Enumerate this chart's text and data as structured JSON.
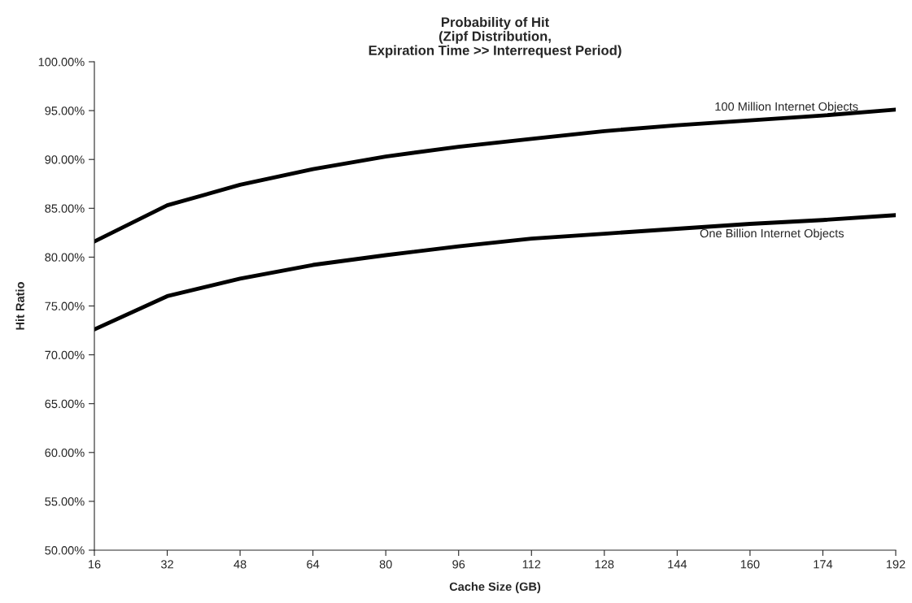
{
  "chart_data": {
    "type": "line",
    "title": "Probability of Hit\n(Zipf Distribution,\nExpiration Time >> Interrequest Period)",
    "xlabel": "Cache Size (GB)",
    "ylabel": "Hit Ratio",
    "categories": [
      "16",
      "32",
      "48",
      "64",
      "80",
      "96",
      "112",
      "128",
      "144",
      "160",
      "174",
      "192"
    ],
    "series": [
      {
        "name": "100 Million Internet Objects",
        "color": "#000000",
        "values": [
          81.6,
          85.3,
          87.4,
          89.0,
          90.3,
          91.3,
          92.1,
          92.9,
          93.5,
          94.0,
          94.5,
          95.1
        ]
      },
      {
        "name": "One Billion Internet Objects",
        "color": "#000000",
        "values": [
          72.6,
          76.0,
          77.8,
          79.2,
          80.2,
          81.1,
          81.9,
          82.4,
          82.9,
          83.4,
          83.8,
          84.3
        ]
      }
    ],
    "ylim": [
      50,
      100
    ],
    "yticks": [
      {
        "value": 50,
        "label": "50.00%"
      },
      {
        "value": 55,
        "label": "55.00%"
      },
      {
        "value": 60,
        "label": "60.00%"
      },
      {
        "value": 65,
        "label": "65.00%"
      },
      {
        "value": 70,
        "label": "70.00%"
      },
      {
        "value": 75,
        "label": "75.00%"
      },
      {
        "value": 80,
        "label": "80.00%"
      },
      {
        "value": 85,
        "label": "85.00%"
      },
      {
        "value": 90,
        "label": "90.00%"
      },
      {
        "value": 95,
        "label": "95.00%"
      },
      {
        "value": 100,
        "label": "100.00%"
      }
    ],
    "grid": false,
    "legend": false,
    "marker": "none",
    "line_style": "solid"
  }
}
